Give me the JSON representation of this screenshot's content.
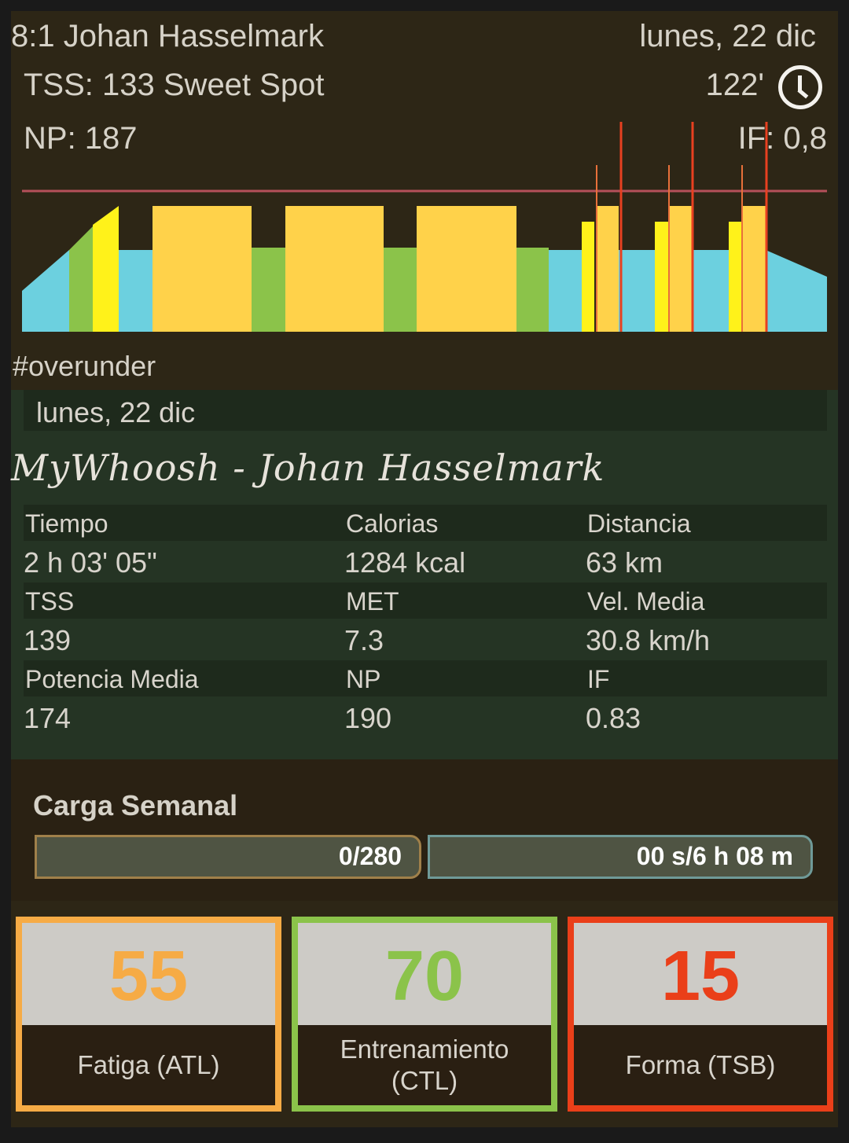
{
  "header": {
    "workout_name": "8:1 Johan Hasselmark",
    "date": "lunes, 22 dic",
    "tss": "TSS: 133 Sweet Spot",
    "duration": "122'",
    "duration_icon": "clock-icon",
    "np": "NP: 187",
    "if": "IF: 0,8"
  },
  "hashtag": "#overunder",
  "activity": {
    "date": "lunes, 22 dic",
    "title": "MyWhoosh - Johan Hasselmark",
    "rows": [
      {
        "labels": [
          "Tiempo",
          "Calorias",
          "Distancia"
        ],
        "values": [
          "2 h 03' 05\"",
          "1284 kcal",
          "63 km"
        ]
      },
      {
        "labels": [
          "TSS",
          "MET",
          "Vel. Media"
        ],
        "values": [
          "139",
          "7.3",
          "30.8 km/h"
        ]
      },
      {
        "labels": [
          "Potencia Media",
          "NP",
          "IF"
        ],
        "values": [
          "174",
          "190",
          "0.83"
        ]
      }
    ]
  },
  "weekly": {
    "title": "Carga Semanal",
    "tss_progress": "0/280",
    "tss_fraction": 0,
    "time_progress": "00 s/6 h 08 m",
    "time_fraction": 0
  },
  "metrics": [
    {
      "value": "55",
      "label": "Fatiga (ATL)",
      "color": "#f6ab45"
    },
    {
      "value": "70",
      "label": "Entrenamiento\n(CTL)",
      "color": "#8bc34a"
    },
    {
      "value": "15",
      "label": "Forma (TSB)",
      "color": "#ea3f19"
    }
  ],
  "colors": {
    "z2": "#6cd0df",
    "z3": "#8bc34a",
    "z4": "#ffd24a",
    "z5": "#fff21a",
    "ftp_line": "#b5505a",
    "peak": "#e84020"
  }
}
